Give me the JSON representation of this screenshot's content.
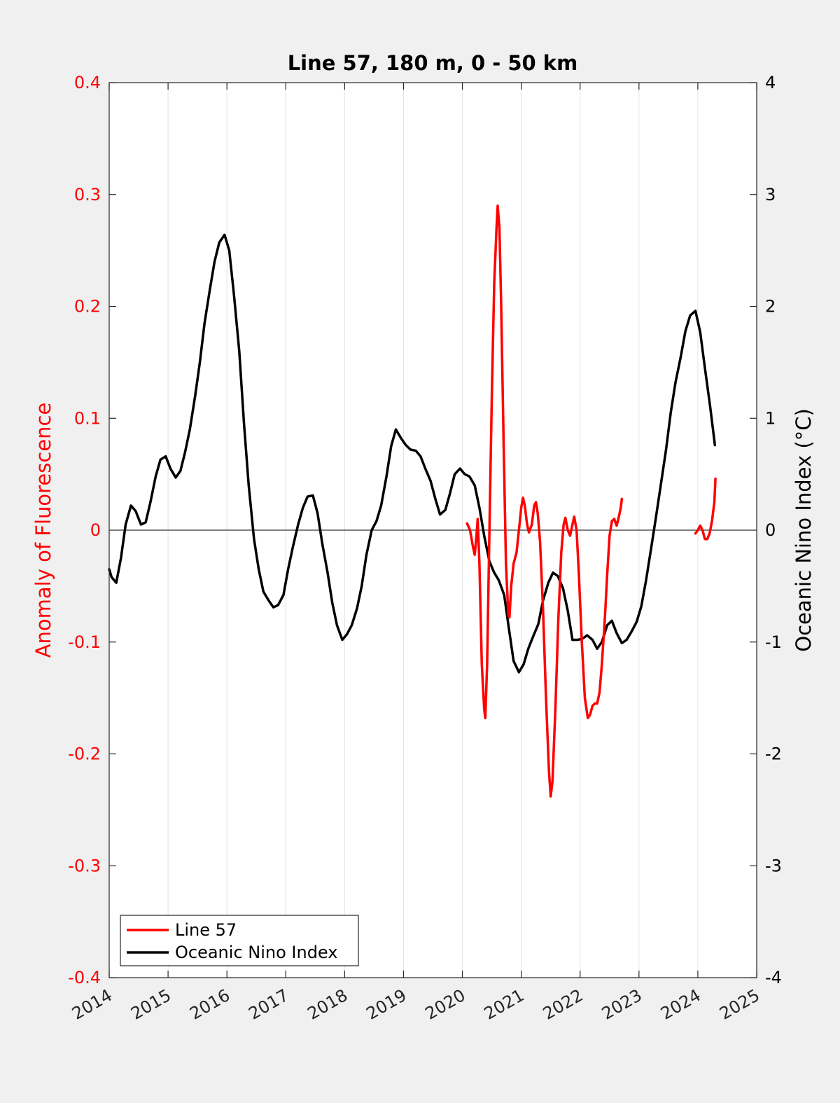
{
  "chart_data": {
    "type": "line",
    "title": "Line 57, 180 m, 0 - 50 km",
    "xlabel": "",
    "ylabel_left": "Anomaly of Fluorescence",
    "ylabel_right": "Oceanic Nino Index (°C)",
    "xlim": [
      2014,
      2025
    ],
    "ylim_left": [
      -0.4,
      0.4
    ],
    "ylim_right": [
      -4,
      4
    ],
    "x_ticks": [
      "2014",
      "2015",
      "2016",
      "2017",
      "2018",
      "2019",
      "2020",
      "2021",
      "2022",
      "2023",
      "2024",
      "2025"
    ],
    "y_ticks_left": [
      "-0.4",
      "-0.3",
      "-0.2",
      "-0.1",
      "0",
      "0.1",
      "0.2",
      "0.3",
      "0.4"
    ],
    "y_ticks_right": [
      "-4",
      "-3",
      "-2",
      "-1",
      "0",
      "1",
      "2",
      "3",
      "4"
    ],
    "grid": "vertical",
    "legend_position": "bottom-left",
    "colors": {
      "line57": "#ff0000",
      "oni": "#000000",
      "left_axis": "#ff0000",
      "right_axis": "#000000"
    },
    "legend": [
      "Line 57",
      "Oceanic Nino Index"
    ],
    "series": [
      {
        "name": "Line 57",
        "axis": "left",
        "color": "#ff0000",
        "segments": [
          [
            [
              2020.08,
              0.006
            ],
            [
              2020.13,
              0.0
            ],
            [
              2020.18,
              -0.015
            ],
            [
              2020.21,
              -0.022
            ],
            [
              2020.24,
              -0.005
            ],
            [
              2020.26,
              0.01
            ],
            [
              2020.29,
              -0.03
            ],
            [
              2020.33,
              -0.12
            ],
            [
              2020.37,
              -0.16
            ],
            [
              2020.39,
              -0.168
            ],
            [
              2020.42,
              -0.12
            ],
            [
              2020.46,
              0.0
            ],
            [
              2020.5,
              0.12
            ],
            [
              2020.54,
              0.22
            ],
            [
              2020.58,
              0.27
            ],
            [
              2020.6,
              0.29
            ],
            [
              2020.63,
              0.27
            ],
            [
              2020.66,
              0.2
            ],
            [
              2020.7,
              0.08
            ],
            [
              2020.74,
              -0.03
            ],
            [
              2020.78,
              -0.075
            ],
            [
              2020.8,
              -0.078
            ],
            [
              2020.83,
              -0.05
            ],
            [
              2020.87,
              -0.03
            ],
            [
              2020.92,
              -0.02
            ],
            [
              2020.96,
              0.0
            ],
            [
              2021.0,
              0.02
            ],
            [
              2021.03,
              0.029
            ],
            [
              2021.06,
              0.022
            ],
            [
              2021.1,
              0.005
            ],
            [
              2021.13,
              -0.002
            ],
            [
              2021.18,
              0.005
            ],
            [
              2021.22,
              0.022
            ],
            [
              2021.25,
              0.025
            ],
            [
              2021.28,
              0.015
            ],
            [
              2021.32,
              -0.01
            ],
            [
              2021.37,
              -0.07
            ],
            [
              2021.42,
              -0.15
            ],
            [
              2021.47,
              -0.215
            ],
            [
              2021.5,
              -0.238
            ],
            [
              2021.53,
              -0.225
            ],
            [
              2021.58,
              -0.16
            ],
            [
              2021.63,
              -0.08
            ],
            [
              2021.68,
              -0.02
            ],
            [
              2021.72,
              0.005
            ],
            [
              2021.75,
              0.011
            ],
            [
              2021.79,
              0.0
            ],
            [
              2021.83,
              -0.005
            ],
            [
              2021.87,
              0.005
            ],
            [
              2021.9,
              0.012
            ],
            [
              2021.94,
              0.0
            ],
            [
              2021.98,
              -0.04
            ],
            [
              2022.03,
              -0.1
            ],
            [
              2022.08,
              -0.15
            ],
            [
              2022.13,
              -0.168
            ],
            [
              2022.17,
              -0.165
            ],
            [
              2022.21,
              -0.157
            ],
            [
              2022.25,
              -0.155
            ],
            [
              2022.29,
              -0.155
            ],
            [
              2022.33,
              -0.145
            ],
            [
              2022.37,
              -0.12
            ],
            [
              2022.42,
              -0.08
            ],
            [
              2022.46,
              -0.04
            ],
            [
              2022.5,
              -0.005
            ],
            [
              2022.54,
              0.008
            ],
            [
              2022.58,
              0.01
            ],
            [
              2022.62,
              0.004
            ],
            [
              2022.65,
              0.01
            ],
            [
              2022.69,
              0.02
            ],
            [
              2022.71,
              0.028
            ]
          ],
          [
            [
              2023.96,
              -0.003
            ],
            [
              2024.0,
              0.0
            ],
            [
              2024.04,
              0.004
            ],
            [
              2024.08,
              0.0
            ],
            [
              2024.12,
              -0.008
            ],
            [
              2024.16,
              -0.008
            ],
            [
              2024.2,
              -0.003
            ],
            [
              2024.24,
              0.008
            ],
            [
              2024.28,
              0.025
            ],
            [
              2024.3,
              0.046
            ]
          ]
        ]
      },
      {
        "name": "Oceanic Nino Index",
        "axis": "right",
        "color": "#000000",
        "segments": [
          [
            [
              2014.0,
              -0.35
            ],
            [
              2014.04,
              -0.42
            ],
            [
              2014.12,
              -0.47
            ],
            [
              2014.2,
              -0.25
            ],
            [
              2014.28,
              0.05
            ],
            [
              2014.37,
              0.22
            ],
            [
              2014.45,
              0.17
            ],
            [
              2014.54,
              0.05
            ],
            [
              2014.62,
              0.07
            ],
            [
              2014.7,
              0.25
            ],
            [
              2014.79,
              0.48
            ],
            [
              2014.87,
              0.63
            ],
            [
              2014.96,
              0.66
            ],
            [
              2015.04,
              0.55
            ],
            [
              2015.13,
              0.47
            ],
            [
              2015.21,
              0.53
            ],
            [
              2015.29,
              0.7
            ],
            [
              2015.37,
              0.9
            ],
            [
              2015.46,
              1.2
            ],
            [
              2015.54,
              1.5
            ],
            [
              2015.62,
              1.85
            ],
            [
              2015.71,
              2.15
            ],
            [
              2015.79,
              2.4
            ],
            [
              2015.87,
              2.57
            ],
            [
              2015.96,
              2.64
            ],
            [
              2016.04,
              2.5
            ],
            [
              2016.12,
              2.1
            ],
            [
              2016.21,
              1.6
            ],
            [
              2016.29,
              0.95
            ],
            [
              2016.37,
              0.4
            ],
            [
              2016.46,
              -0.08
            ],
            [
              2016.54,
              -0.35
            ],
            [
              2016.62,
              -0.55
            ],
            [
              2016.71,
              -0.63
            ],
            [
              2016.79,
              -0.69
            ],
            [
              2016.87,
              -0.67
            ],
            [
              2016.96,
              -0.58
            ],
            [
              2017.04,
              -0.35
            ],
            [
              2017.12,
              -0.15
            ],
            [
              2017.21,
              0.05
            ],
            [
              2017.29,
              0.2
            ],
            [
              2017.37,
              0.3
            ],
            [
              2017.46,
              0.31
            ],
            [
              2017.54,
              0.15
            ],
            [
              2017.62,
              -0.12
            ],
            [
              2017.71,
              -0.38
            ],
            [
              2017.79,
              -0.65
            ],
            [
              2017.87,
              -0.85
            ],
            [
              2017.96,
              -0.98
            ],
            [
              2018.04,
              -0.93
            ],
            [
              2018.12,
              -0.85
            ],
            [
              2018.21,
              -0.7
            ],
            [
              2018.29,
              -0.5
            ],
            [
              2018.37,
              -0.22
            ],
            [
              2018.46,
              0.0
            ],
            [
              2018.54,
              0.08
            ],
            [
              2018.62,
              0.22
            ],
            [
              2018.71,
              0.48
            ],
            [
              2018.79,
              0.75
            ],
            [
              2018.87,
              0.9
            ],
            [
              2018.96,
              0.82
            ],
            [
              2019.04,
              0.76
            ],
            [
              2019.12,
              0.72
            ],
            [
              2019.21,
              0.71
            ],
            [
              2019.29,
              0.66
            ],
            [
              2019.37,
              0.55
            ],
            [
              2019.46,
              0.44
            ],
            [
              2019.54,
              0.28
            ],
            [
              2019.62,
              0.14
            ],
            [
              2019.71,
              0.18
            ],
            [
              2019.79,
              0.33
            ],
            [
              2019.87,
              0.5
            ],
            [
              2019.96,
              0.55
            ],
            [
              2020.04,
              0.5
            ],
            [
              2020.12,
              0.48
            ],
            [
              2020.21,
              0.4
            ],
            [
              2020.29,
              0.2
            ],
            [
              2020.37,
              -0.05
            ],
            [
              2020.46,
              -0.28
            ],
            [
              2020.54,
              -0.38
            ],
            [
              2020.62,
              -0.45
            ],
            [
              2020.71,
              -0.58
            ],
            [
              2020.79,
              -0.88
            ],
            [
              2020.87,
              -1.17
            ],
            [
              2020.96,
              -1.27
            ],
            [
              2021.04,
              -1.2
            ],
            [
              2021.12,
              -1.06
            ],
            [
              2021.21,
              -0.94
            ],
            [
              2021.29,
              -0.84
            ],
            [
              2021.37,
              -0.63
            ],
            [
              2021.46,
              -0.47
            ],
            [
              2021.54,
              -0.38
            ],
            [
              2021.62,
              -0.41
            ],
            [
              2021.71,
              -0.52
            ],
            [
              2021.79,
              -0.72
            ],
            [
              2021.87,
              -0.98
            ],
            [
              2021.96,
              -0.98
            ],
            [
              2022.04,
              -0.97
            ],
            [
              2022.12,
              -0.94
            ],
            [
              2022.21,
              -0.98
            ],
            [
              2022.29,
              -1.06
            ],
            [
              2022.37,
              -1.0
            ],
            [
              2022.46,
              -0.85
            ],
            [
              2022.54,
              -0.81
            ],
            [
              2022.62,
              -0.92
            ],
            [
              2022.71,
              -1.01
            ],
            [
              2022.79,
              -0.98
            ],
            [
              2022.87,
              -0.91
            ],
            [
              2022.96,
              -0.82
            ],
            [
              2023.04,
              -0.68
            ],
            [
              2023.12,
              -0.45
            ],
            [
              2023.21,
              -0.15
            ],
            [
              2023.29,
              0.12
            ],
            [
              2023.37,
              0.4
            ],
            [
              2023.46,
              0.72
            ],
            [
              2023.54,
              1.05
            ],
            [
              2023.62,
              1.32
            ],
            [
              2023.71,
              1.55
            ],
            [
              2023.79,
              1.78
            ],
            [
              2023.87,
              1.92
            ],
            [
              2023.96,
              1.96
            ],
            [
              2024.04,
              1.77
            ],
            [
              2024.12,
              1.45
            ],
            [
              2024.21,
              1.1
            ],
            [
              2024.29,
              0.76
            ]
          ]
        ]
      }
    ]
  }
}
